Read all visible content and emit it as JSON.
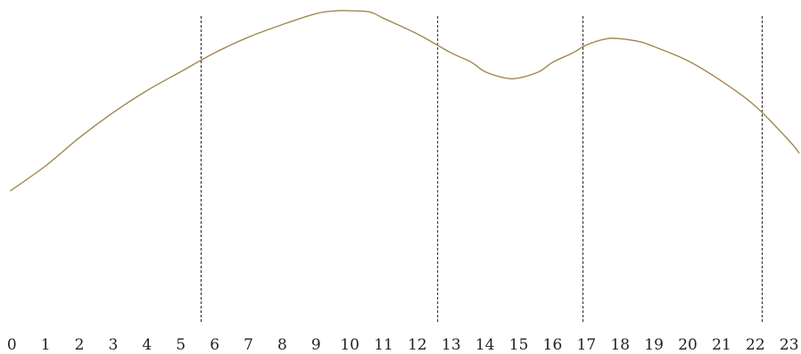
{
  "chart_data": {
    "type": "line",
    "title": "",
    "xlabel": "",
    "ylabel": "",
    "xlim": [
      -0.35,
      23.35
    ],
    "ylim": [
      0,
      1
    ],
    "grid": false,
    "legend": "none",
    "x_ticks": [
      0,
      1,
      2,
      3,
      4,
      5,
      6,
      7,
      8,
      9,
      10,
      11,
      12,
      13,
      14,
      15,
      16,
      17,
      18,
      19,
      20,
      21,
      22,
      23
    ],
    "x_tick_labels": [
      "0",
      "1",
      "2",
      "3",
      "4",
      "5",
      "6",
      "7",
      "8",
      "9",
      "10",
      "11",
      "12",
      "13",
      "14",
      "15",
      "16",
      "17",
      "18",
      "19",
      "20",
      "21",
      "22",
      "23"
    ],
    "vertical_markers": [
      5.6,
      12.6,
      16.9,
      22.2
    ],
    "series": [
      {
        "color": "#a08850",
        "x": [
          -0.05,
          1,
          2,
          3,
          4,
          5,
          6,
          7,
          8,
          9,
          9.6,
          10,
          10.6,
          11,
          12,
          13,
          13.6,
          14,
          14.6,
          15,
          15.6,
          16,
          16.6,
          17,
          17.6,
          18,
          18.6,
          19,
          20,
          21,
          22,
          23,
          23.3
        ],
        "y": [
          0.42,
          0.5,
          0.59,
          0.67,
          0.74,
          0.8,
          0.86,
          0.91,
          0.95,
          0.985,
          0.994,
          0.994,
          0.99,
          0.97,
          0.92,
          0.86,
          0.83,
          0.8,
          0.78,
          0.78,
          0.8,
          0.83,
          0.86,
          0.885,
          0.905,
          0.905,
          0.895,
          0.88,
          0.835,
          0.77,
          0.69,
          0.58,
          0.54
        ]
      }
    ]
  }
}
